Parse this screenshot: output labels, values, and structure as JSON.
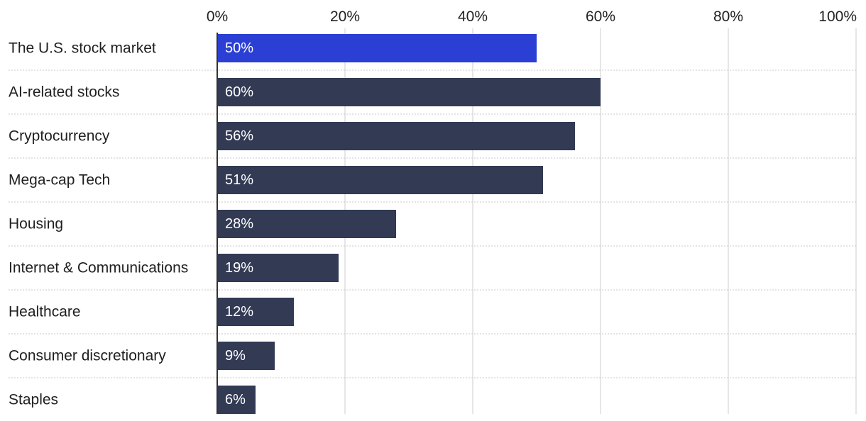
{
  "chart_data": {
    "type": "bar",
    "orientation": "horizontal",
    "title": "",
    "xlabel": "",
    "ylabel": "",
    "xlim": [
      0,
      100
    ],
    "x_ticks": [
      {
        "value": 0,
        "label": "0%"
      },
      {
        "value": 20,
        "label": "20%"
      },
      {
        "value": 40,
        "label": "40%"
      },
      {
        "value": 60,
        "label": "60%"
      },
      {
        "value": 80,
        "label": "80%"
      },
      {
        "value": 100,
        "label": "100%"
      }
    ],
    "grid": true,
    "colors": {
      "highlight": "#2b3fd4",
      "default": "#323a54",
      "grid": "#dddddd",
      "separator": "#c8c8c8",
      "axis": "#333333"
    },
    "bars": [
      {
        "category": "The U.S. stock market",
        "value": 50,
        "label": "50%",
        "highlight": true
      },
      {
        "category": "AI-related stocks",
        "value": 60,
        "label": "60%",
        "highlight": false
      },
      {
        "category": "Cryptocurrency",
        "value": 56,
        "label": "56%",
        "highlight": false
      },
      {
        "category": "Mega-cap Tech",
        "value": 51,
        "label": "51%",
        "highlight": false
      },
      {
        "category": "Housing",
        "value": 28,
        "label": "28%",
        "highlight": false
      },
      {
        "category": "Internet & Communications",
        "value": 19,
        "label": "19%",
        "highlight": false
      },
      {
        "category": "Healthcare",
        "value": 12,
        "label": "12%",
        "highlight": false
      },
      {
        "category": "Consumer discretionary",
        "value": 9,
        "label": "9%",
        "highlight": false
      },
      {
        "category": "Staples",
        "value": 6,
        "label": "6%",
        "highlight": false
      }
    ]
  }
}
